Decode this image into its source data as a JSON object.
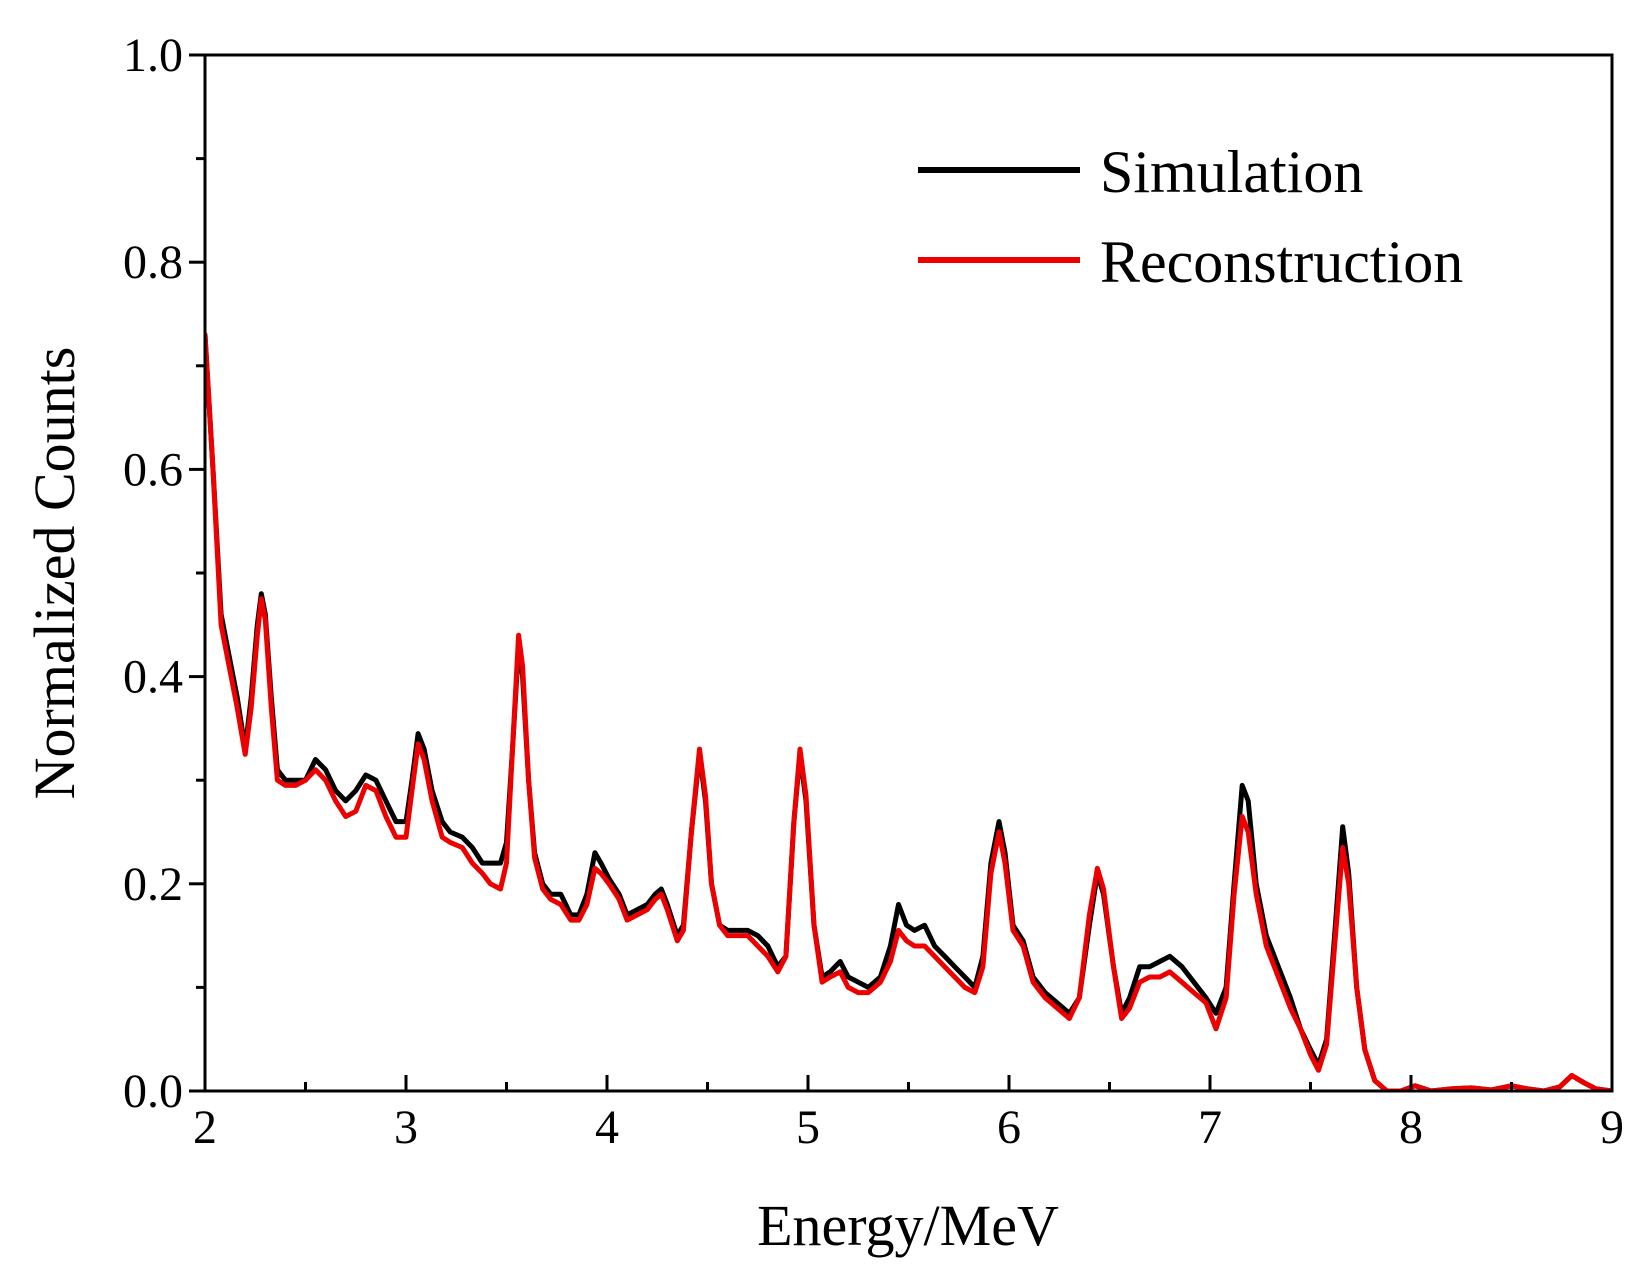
{
  "chart_data": {
    "type": "line",
    "title": "",
    "xlabel": "Energy/MeV",
    "ylabel": "Normalized Counts",
    "xlim": [
      2,
      9
    ],
    "ylim": [
      0.0,
      1.0
    ],
    "xticks": [
      2,
      3,
      4,
      5,
      6,
      7,
      8,
      9
    ],
    "xtick_labels": [
      "2",
      "3",
      "4",
      "5",
      "6",
      "7",
      "8",
      "9"
    ],
    "yticks": [
      0.0,
      0.2,
      0.4,
      0.6,
      0.8,
      1.0
    ],
    "ytick_labels": [
      "0.0",
      "0.2",
      "0.4",
      "0.6",
      "0.8",
      "1.0"
    ],
    "y_minor_step": 0.1,
    "x_minor_step": 0.5,
    "grid": false,
    "legend_position": "top-right",
    "series": [
      {
        "name": "Simulation",
        "color": "#000000",
        "points": [
          [
            2.0,
            0.73
          ],
          [
            2.04,
            0.6
          ],
          [
            2.08,
            0.46
          ],
          [
            2.12,
            0.42
          ],
          [
            2.16,
            0.38
          ],
          [
            2.2,
            0.33
          ],
          [
            2.23,
            0.38
          ],
          [
            2.26,
            0.45
          ],
          [
            2.28,
            0.48
          ],
          [
            2.3,
            0.46
          ],
          [
            2.33,
            0.38
          ],
          [
            2.36,
            0.31
          ],
          [
            2.4,
            0.3
          ],
          [
            2.45,
            0.3
          ],
          [
            2.5,
            0.3
          ],
          [
            2.55,
            0.32
          ],
          [
            2.6,
            0.31
          ],
          [
            2.65,
            0.29
          ],
          [
            2.7,
            0.28
          ],
          [
            2.75,
            0.29
          ],
          [
            2.8,
            0.305
          ],
          [
            2.85,
            0.3
          ],
          [
            2.9,
            0.28
          ],
          [
            2.95,
            0.26
          ],
          [
            3.0,
            0.26
          ],
          [
            3.03,
            0.3
          ],
          [
            3.06,
            0.345
          ],
          [
            3.09,
            0.33
          ],
          [
            3.13,
            0.29
          ],
          [
            3.18,
            0.26
          ],
          [
            3.22,
            0.25
          ],
          [
            3.28,
            0.245
          ],
          [
            3.33,
            0.235
          ],
          [
            3.38,
            0.22
          ],
          [
            3.42,
            0.22
          ],
          [
            3.47,
            0.22
          ],
          [
            3.5,
            0.24
          ],
          [
            3.53,
            0.33
          ],
          [
            3.56,
            0.43
          ],
          [
            3.58,
            0.4
          ],
          [
            3.61,
            0.3
          ],
          [
            3.64,
            0.23
          ],
          [
            3.68,
            0.2
          ],
          [
            3.72,
            0.19
          ],
          [
            3.77,
            0.19
          ],
          [
            3.82,
            0.17
          ],
          [
            3.86,
            0.17
          ],
          [
            3.9,
            0.19
          ],
          [
            3.94,
            0.23
          ],
          [
            3.97,
            0.22
          ],
          [
            4.01,
            0.205
          ],
          [
            4.06,
            0.19
          ],
          [
            4.1,
            0.17
          ],
          [
            4.15,
            0.175
          ],
          [
            4.2,
            0.18
          ],
          [
            4.24,
            0.19
          ],
          [
            4.27,
            0.195
          ],
          [
            4.3,
            0.18
          ],
          [
            4.35,
            0.15
          ],
          [
            4.38,
            0.16
          ],
          [
            4.42,
            0.25
          ],
          [
            4.46,
            0.325
          ],
          [
            4.49,
            0.28
          ],
          [
            4.52,
            0.2
          ],
          [
            4.56,
            0.16
          ],
          [
            4.6,
            0.155
          ],
          [
            4.65,
            0.155
          ],
          [
            4.7,
            0.155
          ],
          [
            4.75,
            0.15
          ],
          [
            4.8,
            0.14
          ],
          [
            4.85,
            0.12
          ],
          [
            4.89,
            0.13
          ],
          [
            4.93,
            0.26
          ],
          [
            4.96,
            0.325
          ],
          [
            4.99,
            0.28
          ],
          [
            5.03,
            0.16
          ],
          [
            5.07,
            0.11
          ],
          [
            5.11,
            0.115
          ],
          [
            5.16,
            0.125
          ],
          [
            5.2,
            0.11
          ],
          [
            5.25,
            0.105
          ],
          [
            5.3,
            0.1
          ],
          [
            5.36,
            0.11
          ],
          [
            5.41,
            0.14
          ],
          [
            5.45,
            0.18
          ],
          [
            5.49,
            0.16
          ],
          [
            5.53,
            0.155
          ],
          [
            5.58,
            0.16
          ],
          [
            5.63,
            0.14
          ],
          [
            5.68,
            0.13
          ],
          [
            5.73,
            0.12
          ],
          [
            5.78,
            0.11
          ],
          [
            5.83,
            0.1
          ],
          [
            5.87,
            0.13
          ],
          [
            5.91,
            0.22
          ],
          [
            5.95,
            0.26
          ],
          [
            5.98,
            0.23
          ],
          [
            6.02,
            0.16
          ],
          [
            6.07,
            0.145
          ],
          [
            6.12,
            0.11
          ],
          [
            6.18,
            0.095
          ],
          [
            6.24,
            0.085
          ],
          [
            6.3,
            0.075
          ],
          [
            6.35,
            0.09
          ],
          [
            6.4,
            0.16
          ],
          [
            6.44,
            0.21
          ],
          [
            6.47,
            0.19
          ],
          [
            6.52,
            0.12
          ],
          [
            6.56,
            0.075
          ],
          [
            6.6,
            0.09
          ],
          [
            6.65,
            0.12
          ],
          [
            6.7,
            0.12
          ],
          [
            6.75,
            0.125
          ],
          [
            6.8,
            0.13
          ],
          [
            6.86,
            0.12
          ],
          [
            6.92,
            0.105
          ],
          [
            6.98,
            0.09
          ],
          [
            7.03,
            0.075
          ],
          [
            7.08,
            0.1
          ],
          [
            7.12,
            0.2
          ],
          [
            7.16,
            0.295
          ],
          [
            7.19,
            0.28
          ],
          [
            7.23,
            0.2
          ],
          [
            7.28,
            0.15
          ],
          [
            7.34,
            0.12
          ],
          [
            7.4,
            0.09
          ],
          [
            7.45,
            0.06
          ],
          [
            7.5,
            0.04
          ],
          [
            7.54,
            0.025
          ],
          [
            7.58,
            0.05
          ],
          [
            7.62,
            0.15
          ],
          [
            7.66,
            0.255
          ],
          [
            7.69,
            0.21
          ],
          [
            7.73,
            0.1
          ],
          [
            7.77,
            0.04
          ],
          [
            7.82,
            0.01
          ],
          [
            7.88,
            0.0
          ],
          [
            7.95,
            0.0
          ],
          [
            8.02,
            0.005
          ],
          [
            8.1,
            0.0
          ],
          [
            8.2,
            0.002
          ],
          [
            8.3,
            0.003
          ],
          [
            8.4,
            0.001
          ],
          [
            8.5,
            0.005
          ],
          [
            8.58,
            0.002
          ],
          [
            8.66,
            0.0
          ],
          [
            8.74,
            0.004
          ],
          [
            8.8,
            0.015
          ],
          [
            8.86,
            0.008
          ],
          [
            8.92,
            0.002
          ],
          [
            9.0,
            0.0
          ]
        ]
      },
      {
        "name": "Reconstruction",
        "color": "#ee0000",
        "points": [
          [
            2.0,
            0.73
          ],
          [
            2.04,
            0.6
          ],
          [
            2.08,
            0.45
          ],
          [
            2.12,
            0.41
          ],
          [
            2.16,
            0.37
          ],
          [
            2.2,
            0.325
          ],
          [
            2.23,
            0.37
          ],
          [
            2.26,
            0.44
          ],
          [
            2.28,
            0.475
          ],
          [
            2.3,
            0.455
          ],
          [
            2.33,
            0.37
          ],
          [
            2.36,
            0.3
          ],
          [
            2.4,
            0.295
          ],
          [
            2.45,
            0.295
          ],
          [
            2.5,
            0.3
          ],
          [
            2.55,
            0.31
          ],
          [
            2.6,
            0.3
          ],
          [
            2.65,
            0.28
          ],
          [
            2.7,
            0.265
          ],
          [
            2.75,
            0.27
          ],
          [
            2.8,
            0.295
          ],
          [
            2.85,
            0.29
          ],
          [
            2.9,
            0.265
          ],
          [
            2.95,
            0.245
          ],
          [
            3.0,
            0.245
          ],
          [
            3.03,
            0.29
          ],
          [
            3.06,
            0.335
          ],
          [
            3.09,
            0.32
          ],
          [
            3.13,
            0.28
          ],
          [
            3.18,
            0.245
          ],
          [
            3.22,
            0.24
          ],
          [
            3.28,
            0.235
          ],
          [
            3.33,
            0.22
          ],
          [
            3.38,
            0.21
          ],
          [
            3.42,
            0.2
          ],
          [
            3.47,
            0.195
          ],
          [
            3.5,
            0.22
          ],
          [
            3.53,
            0.33
          ],
          [
            3.56,
            0.44
          ],
          [
            3.58,
            0.41
          ],
          [
            3.61,
            0.3
          ],
          [
            3.64,
            0.225
          ],
          [
            3.68,
            0.195
          ],
          [
            3.72,
            0.185
          ],
          [
            3.77,
            0.18
          ],
          [
            3.82,
            0.165
          ],
          [
            3.86,
            0.165
          ],
          [
            3.9,
            0.18
          ],
          [
            3.94,
            0.215
          ],
          [
            3.97,
            0.21
          ],
          [
            4.01,
            0.2
          ],
          [
            4.06,
            0.185
          ],
          [
            4.1,
            0.165
          ],
          [
            4.15,
            0.17
          ],
          [
            4.2,
            0.175
          ],
          [
            4.24,
            0.185
          ],
          [
            4.27,
            0.19
          ],
          [
            4.3,
            0.175
          ],
          [
            4.35,
            0.145
          ],
          [
            4.38,
            0.155
          ],
          [
            4.42,
            0.25
          ],
          [
            4.46,
            0.33
          ],
          [
            4.49,
            0.285
          ],
          [
            4.52,
            0.2
          ],
          [
            4.56,
            0.16
          ],
          [
            4.6,
            0.15
          ],
          [
            4.65,
            0.15
          ],
          [
            4.7,
            0.15
          ],
          [
            4.75,
            0.14
          ],
          [
            4.8,
            0.13
          ],
          [
            4.85,
            0.115
          ],
          [
            4.89,
            0.13
          ],
          [
            4.93,
            0.26
          ],
          [
            4.96,
            0.33
          ],
          [
            4.99,
            0.285
          ],
          [
            5.03,
            0.16
          ],
          [
            5.07,
            0.105
          ],
          [
            5.11,
            0.11
          ],
          [
            5.16,
            0.115
          ],
          [
            5.2,
            0.1
          ],
          [
            5.25,
            0.095
          ],
          [
            5.3,
            0.095
          ],
          [
            5.36,
            0.105
          ],
          [
            5.41,
            0.125
          ],
          [
            5.45,
            0.155
          ],
          [
            5.49,
            0.145
          ],
          [
            5.53,
            0.14
          ],
          [
            5.58,
            0.14
          ],
          [
            5.63,
            0.13
          ],
          [
            5.68,
            0.12
          ],
          [
            5.73,
            0.11
          ],
          [
            5.78,
            0.1
          ],
          [
            5.83,
            0.095
          ],
          [
            5.87,
            0.12
          ],
          [
            5.91,
            0.21
          ],
          [
            5.95,
            0.25
          ],
          [
            5.98,
            0.22
          ],
          [
            6.02,
            0.155
          ],
          [
            6.07,
            0.14
          ],
          [
            6.12,
            0.105
          ],
          [
            6.18,
            0.09
          ],
          [
            6.24,
            0.08
          ],
          [
            6.3,
            0.07
          ],
          [
            6.35,
            0.09
          ],
          [
            6.4,
            0.17
          ],
          [
            6.44,
            0.215
          ],
          [
            6.47,
            0.195
          ],
          [
            6.52,
            0.12
          ],
          [
            6.56,
            0.07
          ],
          [
            6.6,
            0.08
          ],
          [
            6.65,
            0.105
          ],
          [
            6.7,
            0.11
          ],
          [
            6.75,
            0.11
          ],
          [
            6.8,
            0.115
          ],
          [
            6.86,
            0.105
          ],
          [
            6.92,
            0.095
          ],
          [
            6.98,
            0.085
          ],
          [
            7.03,
            0.06
          ],
          [
            7.08,
            0.09
          ],
          [
            7.12,
            0.19
          ],
          [
            7.16,
            0.265
          ],
          [
            7.19,
            0.25
          ],
          [
            7.23,
            0.19
          ],
          [
            7.28,
            0.14
          ],
          [
            7.34,
            0.11
          ],
          [
            7.4,
            0.08
          ],
          [
            7.45,
            0.06
          ],
          [
            7.5,
            0.035
          ],
          [
            7.54,
            0.02
          ],
          [
            7.58,
            0.045
          ],
          [
            7.62,
            0.14
          ],
          [
            7.66,
            0.235
          ],
          [
            7.69,
            0.2
          ],
          [
            7.73,
            0.1
          ],
          [
            7.77,
            0.04
          ],
          [
            7.82,
            0.01
          ],
          [
            7.88,
            0.0
          ],
          [
            7.95,
            0.0
          ],
          [
            8.02,
            0.005
          ],
          [
            8.1,
            0.0
          ],
          [
            8.2,
            0.002
          ],
          [
            8.3,
            0.003
          ],
          [
            8.4,
            0.001
          ],
          [
            8.5,
            0.005
          ],
          [
            8.58,
            0.002
          ],
          [
            8.66,
            0.0
          ],
          [
            8.74,
            0.004
          ],
          [
            8.8,
            0.015
          ],
          [
            8.86,
            0.008
          ],
          [
            8.92,
            0.002
          ],
          [
            9.0,
            0.0
          ]
        ]
      }
    ]
  }
}
